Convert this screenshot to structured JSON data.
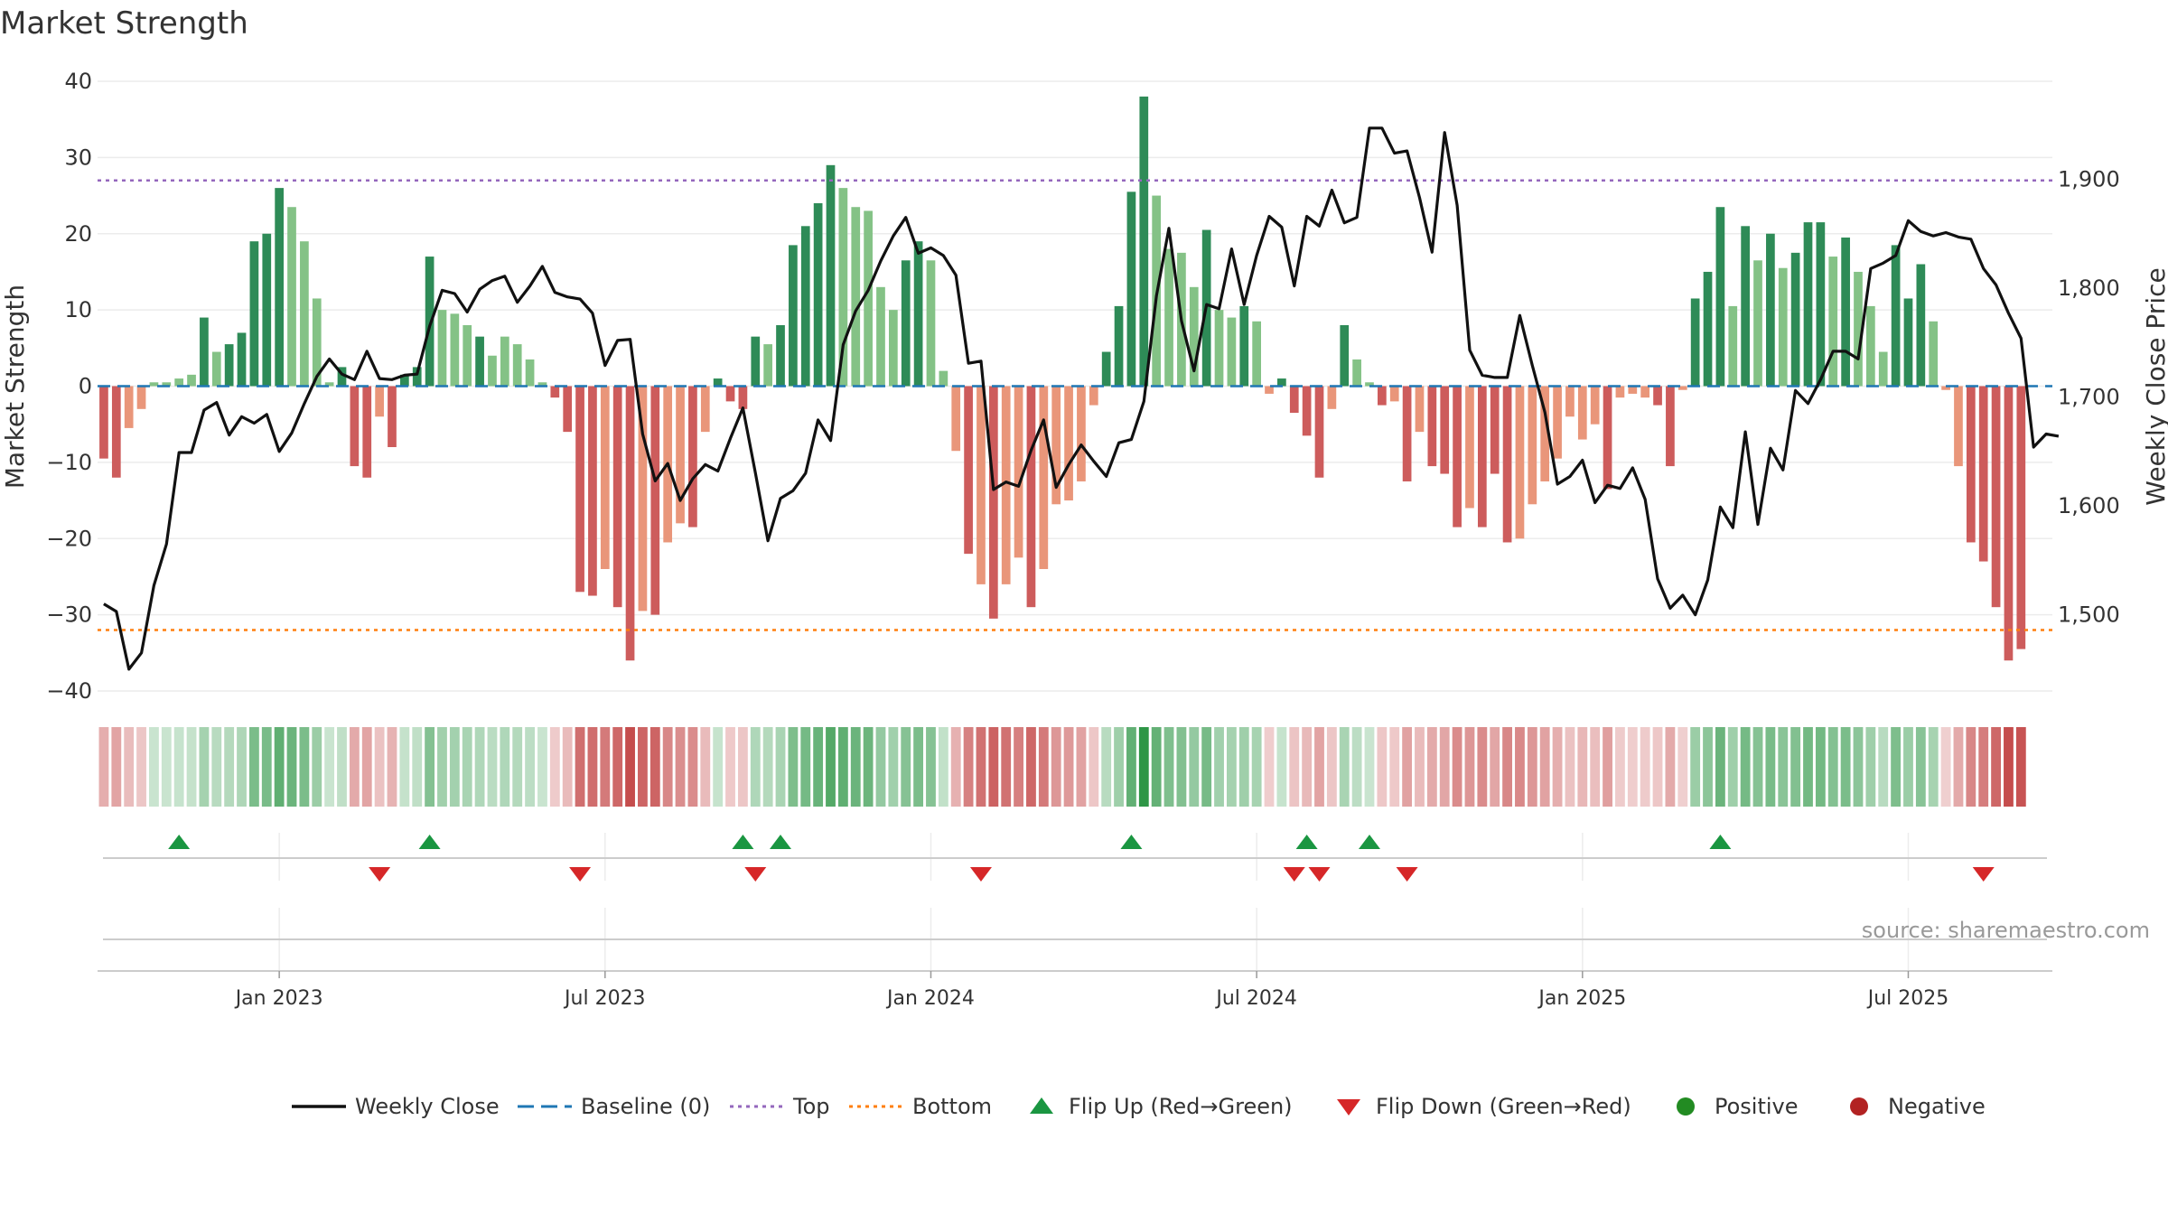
{
  "title": "Market Strength",
  "source": "source: sharemaestro.com",
  "colors": {
    "pos_dark": "#2e8b57",
    "pos_light": "#84c286",
    "neg_dark": "#cd5c5c",
    "neg_light": "#e9967a",
    "close_line": "#111111",
    "baseline": "#1f77b4",
    "top": "#9467bd",
    "bottom": "#ff7f0e",
    "flip_up": "#1a9641",
    "flip_down": "#d62728",
    "positive_dot": "#228b22",
    "negative_dot": "#b22222"
  },
  "chart_data": {
    "type": "bar",
    "title": "Market Strength",
    "ylabel": "Market Strength",
    "y2label": "Weekly Close Price",
    "ylim": [
      -40,
      40
    ],
    "y2lim": [
      1430,
      1990
    ],
    "yticks": [
      "40",
      "30",
      "20",
      "10",
      "0",
      "−10",
      "−20",
      "−30",
      "−40"
    ],
    "ytick_values": [
      40,
      30,
      20,
      10,
      0,
      -10,
      -20,
      -30,
      -40
    ],
    "y2ticks": [
      "1,900",
      "1,800",
      "1,700",
      "1,600",
      "1,500"
    ],
    "y2tick_values": [
      1900,
      1800,
      1700,
      1600,
      1500
    ],
    "x_start": "2022-10-02",
    "weeks": 156,
    "xticks": [
      {
        "label": "Jan 2023",
        "week": 14
      },
      {
        "label": "Jul 2023",
        "week": 40
      },
      {
        "label": "Jan 2024",
        "week": 66
      },
      {
        "label": "Jul 2024",
        "week": 92
      },
      {
        "label": "Jan 2025",
        "week": 118
      },
      {
        "label": "Jul 2025",
        "week": 144
      }
    ],
    "top_line": 27,
    "bottom_line": -32,
    "baseline": 0,
    "strength": [
      -9.5,
      -12,
      -5.5,
      -3,
      0.5,
      0.5,
      1,
      1.5,
      9,
      4.5,
      5.5,
      7,
      19,
      20,
      26,
      23.5,
      19,
      11.5,
      0.5,
      2.5,
      -10.5,
      -12,
      -4,
      -8,
      1.5,
      2.5,
      17,
      10,
      9.5,
      8,
      6.5,
      4,
      6.5,
      5.5,
      3.5,
      0.5,
      -1.5,
      -6,
      -27,
      -27.5,
      -24,
      -29,
      -36,
      -29.5,
      -30,
      -20.5,
      -18,
      -18.5,
      -6,
      1,
      -2,
      -3,
      6.5,
      5.5,
      8,
      18.5,
      21,
      24,
      29,
      26,
      23.5,
      23,
      13,
      10,
      16.5,
      19,
      16.5,
      2,
      -8.5,
      -22,
      -26,
      -30.5,
      -26,
      -22.5,
      -29,
      -24,
      -15.5,
      -15,
      -12.5,
      -2.5,
      4.5,
      10.5,
      25.5,
      38,
      25,
      18,
      17.5,
      13,
      20.5,
      10,
      9,
      10.5,
      8.5,
      -1,
      1,
      -3.5,
      -6.5,
      -12,
      -3,
      8,
      3.5,
      0.5,
      -2.5,
      -2,
      -12.5,
      -6,
      -10.5,
      -11.5,
      -18.5,
      -16,
      -18.5,
      -11.5,
      -20.5,
      -20,
      -15.5,
      -12.5,
      -9.5,
      -4,
      -7,
      -5,
      -13.5,
      -1.5,
      -1,
      -1.5,
      -2.5,
      -10.5,
      -0.5,
      11.5,
      15,
      23.5,
      10.5,
      21,
      16.5,
      20,
      15.5,
      17.5,
      21.5,
      21.5,
      17,
      19.5,
      15,
      10.5,
      4.5,
      18.5,
      11.5,
      16,
      8.5,
      -0.5,
      -10.5,
      -20.5,
      -23,
      -29,
      -36,
      -34.5
    ],
    "strength_shade": [
      1,
      1,
      0,
      0,
      0,
      0,
      0,
      0,
      1,
      0,
      1,
      1,
      1,
      1,
      1,
      0,
      0,
      0,
      0,
      1,
      1,
      1,
      0,
      1,
      1,
      1,
      1,
      0,
      0,
      0,
      1,
      0,
      0,
      0,
      0,
      0,
      1,
      1,
      1,
      1,
      0,
      1,
      1,
      0,
      1,
      0,
      0,
      1,
      0,
      1,
      1,
      1,
      1,
      0,
      1,
      1,
      1,
      1,
      1,
      0,
      0,
      0,
      0,
      0,
      1,
      1,
      0,
      0,
      0,
      1,
      0,
      1,
      0,
      0,
      1,
      0,
      0,
      0,
      0,
      0,
      1,
      1,
      1,
      1,
      0,
      0,
      0,
      0,
      1,
      0,
      0,
      1,
      0,
      0,
      1,
      1,
      1,
      1,
      0,
      1,
      0,
      0,
      1,
      0,
      1,
      0,
      1,
      1,
      1,
      0,
      1,
      1,
      1,
      0,
      0,
      0,
      0,
      0,
      0,
      0,
      1,
      0,
      0,
      0,
      1,
      1,
      0,
      1,
      1,
      1,
      0,
      1,
      0,
      1,
      0,
      1,
      1,
      1,
      0,
      1,
      0,
      0,
      0,
      1,
      1,
      1,
      0,
      0,
      0,
      1,
      1,
      1,
      1,
      1,
      1
    ],
    "close": [
      1510,
      1503,
      1450,
      1465,
      1527,
      1565,
      1649,
      1649,
      1688,
      1695,
      1665,
      1682,
      1676,
      1684,
      1650,
      1667,
      1694,
      1719,
      1735,
      1721,
      1716,
      1742,
      1717,
      1716,
      1720,
      1721,
      1765,
      1798,
      1795,
      1778,
      1799,
      1807,
      1811,
      1787,
      1802,
      1820,
      1796,
      1792,
      1790,
      1777,
      1729,
      1752,
      1753,
      1666,
      1623,
      1639,
      1605,
      1625,
      1638,
      1632,
      1662,
      1690,
      1630,
      1568,
      1607,
      1614,
      1630,
      1679,
      1660,
      1748,
      1779,
      1798,
      1825,
      1848,
      1865,
      1832,
      1837,
      1830,
      1812,
      1731,
      1733,
      1615,
      1622,
      1618,
      1651,
      1679,
      1617,
      1638,
      1656,
      1641,
      1627,
      1658,
      1661,
      1696,
      1793,
      1855,
      1770,
      1724,
      1785,
      1781,
      1836,
      1785,
      1830,
      1866,
      1856,
      1802,
      1866,
      1857,
      1890,
      1860,
      1865,
      1947,
      1947,
      1924,
      1926,
      1883,
      1833,
      1943,
      1876,
      1743,
      1720,
      1718,
      1718,
      1775,
      1729,
      1686,
      1620,
      1627,
      1642,
      1603,
      1619,
      1616,
      1635,
      1606,
      1533,
      1506,
      1518,
      1500,
      1532,
      1599,
      1580,
      1668,
      1583,
      1653,
      1633,
      1706,
      1694,
      1716,
      1742,
      1742,
      1735,
      1818,
      1823,
      1830,
      1862,
      1852,
      1848,
      1851,
      1847,
      1845,
      1818,
      1803,
      1777,
      1754,
      1654,
      1666,
      1664
    ],
    "flip_up_weeks": [
      6,
      26,
      51,
      54,
      82,
      96,
      101,
      129
    ],
    "flip_down_weeks": [
      22,
      38,
      52,
      70,
      95,
      97,
      104,
      150
    ],
    "legend": [
      {
        "label": "Weekly Close",
        "kind": "line"
      },
      {
        "label": "Baseline (0)",
        "kind": "dash"
      },
      {
        "label": "Top",
        "kind": "dot-purple"
      },
      {
        "label": "Bottom",
        "kind": "dot-orange"
      },
      {
        "label": "Flip Up (Red→Green)",
        "kind": "tri-up"
      },
      {
        "label": "Flip Down (Green→Red)",
        "kind": "tri-down"
      },
      {
        "label": "Positive",
        "kind": "circle-pos"
      },
      {
        "label": "Negative",
        "kind": "circle-neg"
      }
    ]
  }
}
